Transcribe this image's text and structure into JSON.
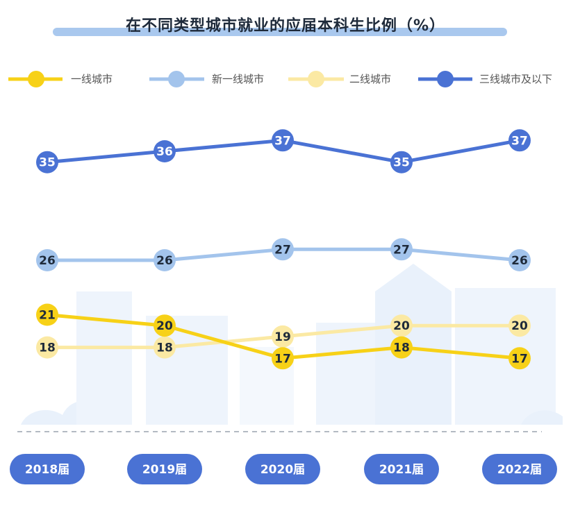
{
  "chart_data": {
    "type": "line",
    "title": "在不同类型城市就业的应届本科生比例（%）",
    "categories": [
      "2018届",
      "2019届",
      "2020届",
      "2021届",
      "2022届"
    ],
    "series": [
      {
        "name": "一线城市",
        "values": [
          21,
          20,
          17,
          18,
          17
        ],
        "color": "#f7d117",
        "label_color": "dark"
      },
      {
        "name": "新一线城市",
        "values": [
          26,
          26,
          27,
          27,
          26
        ],
        "color": "#a3c4ec",
        "label_color": "dark"
      },
      {
        "name": "二线城市",
        "values": [
          18,
          18,
          19,
          20,
          20
        ],
        "color": "#fbe9a3",
        "label_color": "dark"
      },
      {
        "name": "三线城市及以下",
        "values": [
          35,
          36,
          37,
          35,
          37
        ],
        "color": "#4a72d4",
        "label_color": "light"
      }
    ],
    "legend_position": "top",
    "grid": false
  }
}
